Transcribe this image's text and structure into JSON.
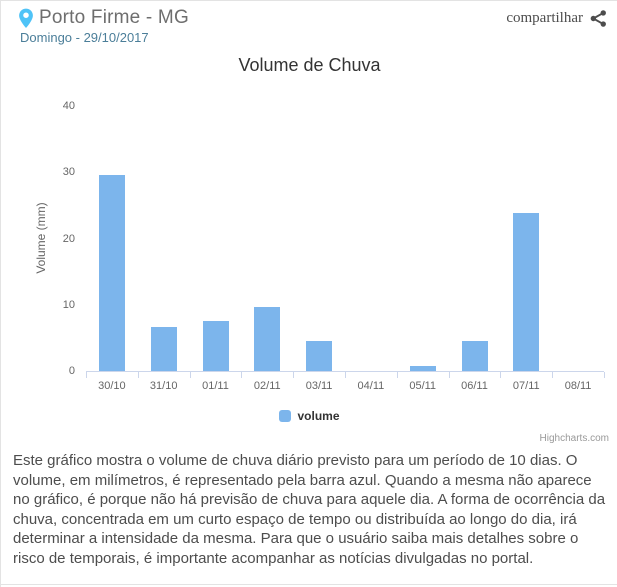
{
  "header": {
    "location": "Porto Firme - MG",
    "date": "Domingo - 29/10/2017",
    "share_label": "compartilhar"
  },
  "chart_data": {
    "type": "bar",
    "title": "Volume de Chuva",
    "xlabel": "",
    "ylabel": "Volume (mm)",
    "categories": [
      "30/10",
      "31/10",
      "01/11",
      "02/11",
      "03/11",
      "04/11",
      "05/11",
      "06/11",
      "07/11",
      "08/11"
    ],
    "series": [
      {
        "name": "volume",
        "color": "#7cb5ec",
        "values": [
          29.6,
          6.6,
          7.6,
          9.6,
          4.6,
          0,
          0.8,
          4.6,
          23.8,
          0
        ]
      }
    ],
    "ylim": [
      0,
      40
    ],
    "yticks": [
      0,
      10,
      20,
      30,
      40
    ],
    "grid": false,
    "legend_position": "bottom-center",
    "credit": "Highcharts.com"
  },
  "description": "Este gráfico mostra o volume de chuva diário previsto para um período de 10 dias. O volume, em milímetros, é representado pela barra azul. Quando a mesma não aparece no gráfico, é porque não há previsão de chuva para aquele dia. A forma de ocorrência da chuva, concentrada em um curto espaço de tempo ou distribuída ao longo do dia, irá determinar a intensidade da mesma. Para que o usuário saiba mais detalhes sobre o risco de temporais, é importante acompanhar as notícias divulgadas no portal.",
  "colors": {
    "bar_blue": "#7cb5ec",
    "pin_blue": "#4fc3f7",
    "subtitle_teal": "#4b7e99",
    "icon_gray": "#4d4d4d"
  }
}
